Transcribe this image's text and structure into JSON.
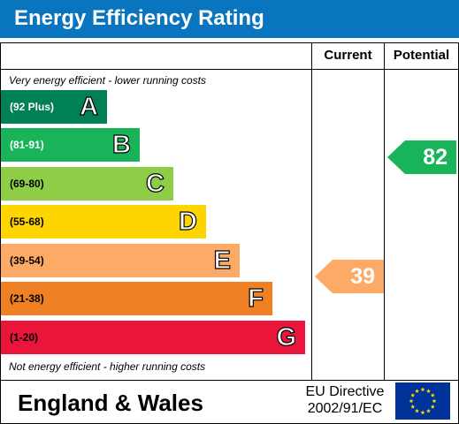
{
  "header": {
    "title": "Energy Efficiency Rating"
  },
  "columns": {
    "current": "Current",
    "potential": "Potential"
  },
  "notes": {
    "top": "Very energy efficient - lower running costs",
    "bottom": "Not energy efficient - higher running costs"
  },
  "bands": [
    {
      "range": "(92 Plus)",
      "letter": "A",
      "color": "#008054",
      "range_color": "#ffffff"
    },
    {
      "range": "(81-91)",
      "letter": "B",
      "color": "#19b459",
      "range_color": "#ffffff"
    },
    {
      "range": "(69-80)",
      "letter": "C",
      "color": "#8dce46",
      "range_color": "#000000"
    },
    {
      "range": "(55-68)",
      "letter": "D",
      "color": "#ffd500",
      "range_color": "#000000"
    },
    {
      "range": "(39-54)",
      "letter": "E",
      "color": "#fcaa65",
      "range_color": "#000000"
    },
    {
      "range": "(21-38)",
      "letter": "F",
      "color": "#ef8023",
      "range_color": "#000000"
    },
    {
      "range": "(1-20)",
      "letter": "G",
      "color": "#e9153b",
      "range_color": "#000000"
    }
  ],
  "ratings": {
    "current": {
      "value": "39",
      "band": "E",
      "color": "#fcaa65"
    },
    "potential": {
      "value": "82",
      "band": "B",
      "color": "#19b459"
    }
  },
  "footer": {
    "region": "England & Wales",
    "directive_line1": "EU Directive",
    "directive_line2": "2002/91/EC"
  },
  "colors": {
    "header_bg": "#0a75bf",
    "flag_bg": "#003399",
    "flag_stars": "#ffdd00"
  }
}
